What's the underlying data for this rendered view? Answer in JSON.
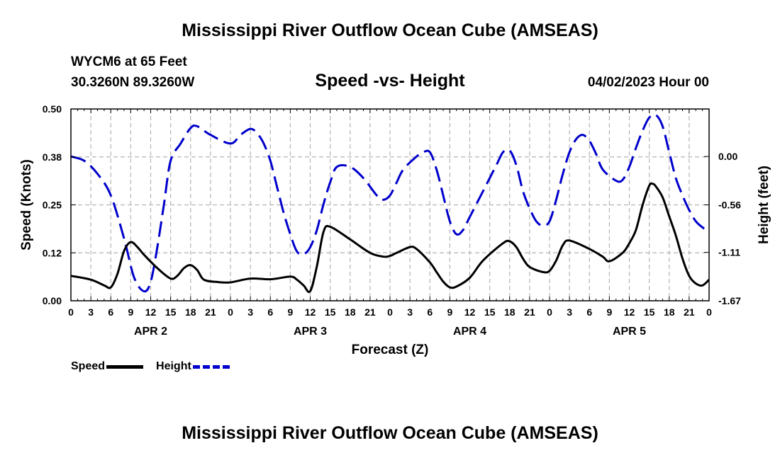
{
  "page": {
    "title": "Mississippi River Outflow Ocean Cube (AMSEAS)",
    "station": "WYCM6 at 65 Feet",
    "coords": "30.3260N  89.3260W",
    "subtitle": "Speed -vs- Height",
    "datetime": "04/02/2023 Hour 00",
    "footer_title": "Mississippi River Outflow Ocean Cube (AMSEAS)"
  },
  "legend": {
    "speed_label": "Speed",
    "height_label": "Height"
  },
  "colors": {
    "speed": "#000000",
    "height": "#0000cc",
    "grid": "#b4b4b4"
  },
  "chart_data": {
    "type": "line",
    "title": "Speed -vs- Height",
    "xlabel": "Forecast (Z)",
    "ylabel_left": "Speed (Knots)",
    "ylabel_right": "Height (feet)",
    "x_unit": "hours from 04/02/2023 Hour 00",
    "xlim": [
      0,
      96
    ],
    "ylim_left": [
      0,
      0.5
    ],
    "ylim_right": [
      -1.67,
      0.55
    ],
    "left_ticks": [
      {
        "v": 0.0,
        "label": "0.00"
      },
      {
        "v": 0.125,
        "label": "0.12"
      },
      {
        "v": 0.25,
        "label": "0.25"
      },
      {
        "v": 0.375,
        "label": "0.38"
      },
      {
        "v": 0.5,
        "label": "0.50"
      }
    ],
    "right_ticks": [
      {
        "v": 0.0,
        "label": "0.00"
      },
      {
        "v": -0.56,
        "label": "-0.56"
      },
      {
        "v": -1.11,
        "label": "-1.11"
      },
      {
        "v": -1.67,
        "label": "-1.67"
      }
    ],
    "x_ticks": [
      {
        "h": 0,
        "label": "0"
      },
      {
        "h": 3,
        "label": "3"
      },
      {
        "h": 6,
        "label": "6"
      },
      {
        "h": 9,
        "label": "9"
      },
      {
        "h": 12,
        "label": "12"
      },
      {
        "h": 15,
        "label": "15"
      },
      {
        "h": 18,
        "label": "18"
      },
      {
        "h": 21,
        "label": "21"
      },
      {
        "h": 24,
        "label": "0"
      },
      {
        "h": 27,
        "label": "3"
      },
      {
        "h": 30,
        "label": "6"
      },
      {
        "h": 33,
        "label": "9"
      },
      {
        "h": 36,
        "label": "12"
      },
      {
        "h": 39,
        "label": "15"
      },
      {
        "h": 42,
        "label": "18"
      },
      {
        "h": 45,
        "label": "21"
      },
      {
        "h": 48,
        "label": "0"
      },
      {
        "h": 51,
        "label": "3"
      },
      {
        "h": 54,
        "label": "6"
      },
      {
        "h": 57,
        "label": "9"
      },
      {
        "h": 60,
        "label": "12"
      },
      {
        "h": 63,
        "label": "15"
      },
      {
        "h": 66,
        "label": "18"
      },
      {
        "h": 69,
        "label": "21"
      },
      {
        "h": 72,
        "label": "0"
      },
      {
        "h": 75,
        "label": "3"
      },
      {
        "h": 78,
        "label": "6"
      },
      {
        "h": 81,
        "label": "9"
      },
      {
        "h": 84,
        "label": "12"
      },
      {
        "h": 87,
        "label": "15"
      },
      {
        "h": 90,
        "label": "18"
      },
      {
        "h": 93,
        "label": "21"
      },
      {
        "h": 96,
        "label": "0"
      }
    ],
    "day_labels": [
      {
        "h": 12,
        "label": "APR 2"
      },
      {
        "h": 36,
        "label": "APR 3"
      },
      {
        "h": 60,
        "label": "APR 4"
      },
      {
        "h": 84,
        "label": "APR 5"
      }
    ],
    "series": [
      {
        "name": "Speed",
        "axis": "left",
        "style": "solid",
        "points": [
          [
            0,
            0.065
          ],
          [
            3,
            0.055
          ],
          [
            5,
            0.04
          ],
          [
            6,
            0.035
          ],
          [
            7,
            0.07
          ],
          [
            8,
            0.13
          ],
          [
            9,
            0.153
          ],
          [
            10,
            0.14
          ],
          [
            11,
            0.12
          ],
          [
            13,
            0.085
          ],
          [
            15,
            0.058
          ],
          [
            16,
            0.065
          ],
          [
            17,
            0.085
          ],
          [
            18,
            0.093
          ],
          [
            19,
            0.08
          ],
          [
            20,
            0.055
          ],
          [
            22,
            0.049
          ],
          [
            24,
            0.048
          ],
          [
            27,
            0.058
          ],
          [
            30,
            0.056
          ],
          [
            33,
            0.063
          ],
          [
            34,
            0.055
          ],
          [
            35,
            0.04
          ],
          [
            36,
            0.025
          ],
          [
            37,
            0.09
          ],
          [
            38,
            0.18
          ],
          [
            39,
            0.193
          ],
          [
            42,
            0.16
          ],
          [
            45,
            0.125
          ],
          [
            47,
            0.115
          ],
          [
            48,
            0.117
          ],
          [
            49,
            0.125
          ],
          [
            51,
            0.14
          ],
          [
            52,
            0.135
          ],
          [
            54,
            0.1
          ],
          [
            55,
            0.075
          ],
          [
            56,
            0.05
          ],
          [
            57,
            0.035
          ],
          [
            58,
            0.037
          ],
          [
            60,
            0.06
          ],
          [
            62,
            0.105
          ],
          [
            65,
            0.15
          ],
          [
            66,
            0.155
          ],
          [
            67,
            0.14
          ],
          [
            68,
            0.11
          ],
          [
            69,
            0.088
          ],
          [
            71,
            0.075
          ],
          [
            72,
            0.078
          ],
          [
            73,
            0.105
          ],
          [
            74,
            0.145
          ],
          [
            75,
            0.157
          ],
          [
            78,
            0.135
          ],
          [
            80,
            0.115
          ],
          [
            81,
            0.103
          ],
          [
            83,
            0.125
          ],
          [
            84,
            0.15
          ],
          [
            85,
            0.185
          ],
          [
            86,
            0.25
          ],
          [
            87,
            0.3
          ],
          [
            87.5,
            0.305
          ],
          [
            88,
            0.298
          ],
          [
            89,
            0.27
          ],
          [
            90,
            0.22
          ],
          [
            91,
            0.17
          ],
          [
            92,
            0.11
          ],
          [
            93,
            0.065
          ],
          [
            94,
            0.045
          ],
          [
            95,
            0.04
          ],
          [
            96,
            0.055
          ]
        ]
      },
      {
        "name": "Height",
        "axis": "right",
        "style": "dashed",
        "points": [
          [
            0,
            0.0
          ],
          [
            2,
            -0.05
          ],
          [
            4,
            -0.2
          ],
          [
            6,
            -0.45
          ],
          [
            8,
            -0.95
          ],
          [
            9.5,
            -1.4
          ],
          [
            11,
            -1.56
          ],
          [
            12,
            -1.45
          ],
          [
            13,
            -1.05
          ],
          [
            14,
            -0.55
          ],
          [
            15,
            -0.05
          ],
          [
            16.5,
            0.15
          ],
          [
            18,
            0.33
          ],
          [
            19,
            0.35
          ],
          [
            21,
            0.25
          ],
          [
            24,
            0.15
          ],
          [
            25.5,
            0.25
          ],
          [
            27,
            0.32
          ],
          [
            28,
            0.27
          ],
          [
            29,
            0.15
          ],
          [
            30,
            -0.05
          ],
          [
            31,
            -0.35
          ],
          [
            32,
            -0.65
          ],
          [
            33,
            -0.9
          ],
          [
            34,
            -1.1
          ],
          [
            35,
            -1.13
          ],
          [
            36,
            -1.05
          ],
          [
            37,
            -0.85
          ],
          [
            38,
            -0.55
          ],
          [
            39,
            -0.3
          ],
          [
            40,
            -0.12
          ],
          [
            42,
            -0.12
          ],
          [
            44,
            -0.25
          ],
          [
            46,
            -0.45
          ],
          [
            47,
            -0.5
          ],
          [
            48,
            -0.45
          ],
          [
            49,
            -0.3
          ],
          [
            50,
            -0.15
          ],
          [
            52,
            0.0
          ],
          [
            53,
            0.05
          ],
          [
            54,
            0.05
          ],
          [
            55,
            -0.15
          ],
          [
            56,
            -0.45
          ],
          [
            57,
            -0.75
          ],
          [
            58,
            -0.9
          ],
          [
            59,
            -0.85
          ],
          [
            60,
            -0.7
          ],
          [
            62,
            -0.4
          ],
          [
            64,
            -0.1
          ],
          [
            65,
            0.05
          ],
          [
            66,
            0.07
          ],
          [
            67,
            -0.1
          ],
          [
            68,
            -0.4
          ],
          [
            69,
            -0.6
          ],
          [
            70,
            -0.75
          ],
          [
            71,
            -0.8
          ],
          [
            72,
            -0.75
          ],
          [
            73,
            -0.5
          ],
          [
            74,
            -0.2
          ],
          [
            75,
            0.05
          ],
          [
            76,
            0.2
          ],
          [
            77,
            0.25
          ],
          [
            78,
            0.18
          ],
          [
            79,
            0.03
          ],
          [
            80,
            -0.15
          ],
          [
            82,
            -0.28
          ],
          [
            83,
            -0.27
          ],
          [
            84,
            -0.12
          ],
          [
            85,
            0.1
          ],
          [
            86,
            0.3
          ],
          [
            87,
            0.45
          ],
          [
            88,
            0.48
          ],
          [
            89,
            0.35
          ],
          [
            90,
            0.05
          ],
          [
            91,
            -0.25
          ],
          [
            92,
            -0.45
          ],
          [
            93,
            -0.62
          ],
          [
            94,
            -0.75
          ],
          [
            95,
            -0.82
          ],
          [
            96,
            -0.88
          ]
        ]
      }
    ]
  }
}
